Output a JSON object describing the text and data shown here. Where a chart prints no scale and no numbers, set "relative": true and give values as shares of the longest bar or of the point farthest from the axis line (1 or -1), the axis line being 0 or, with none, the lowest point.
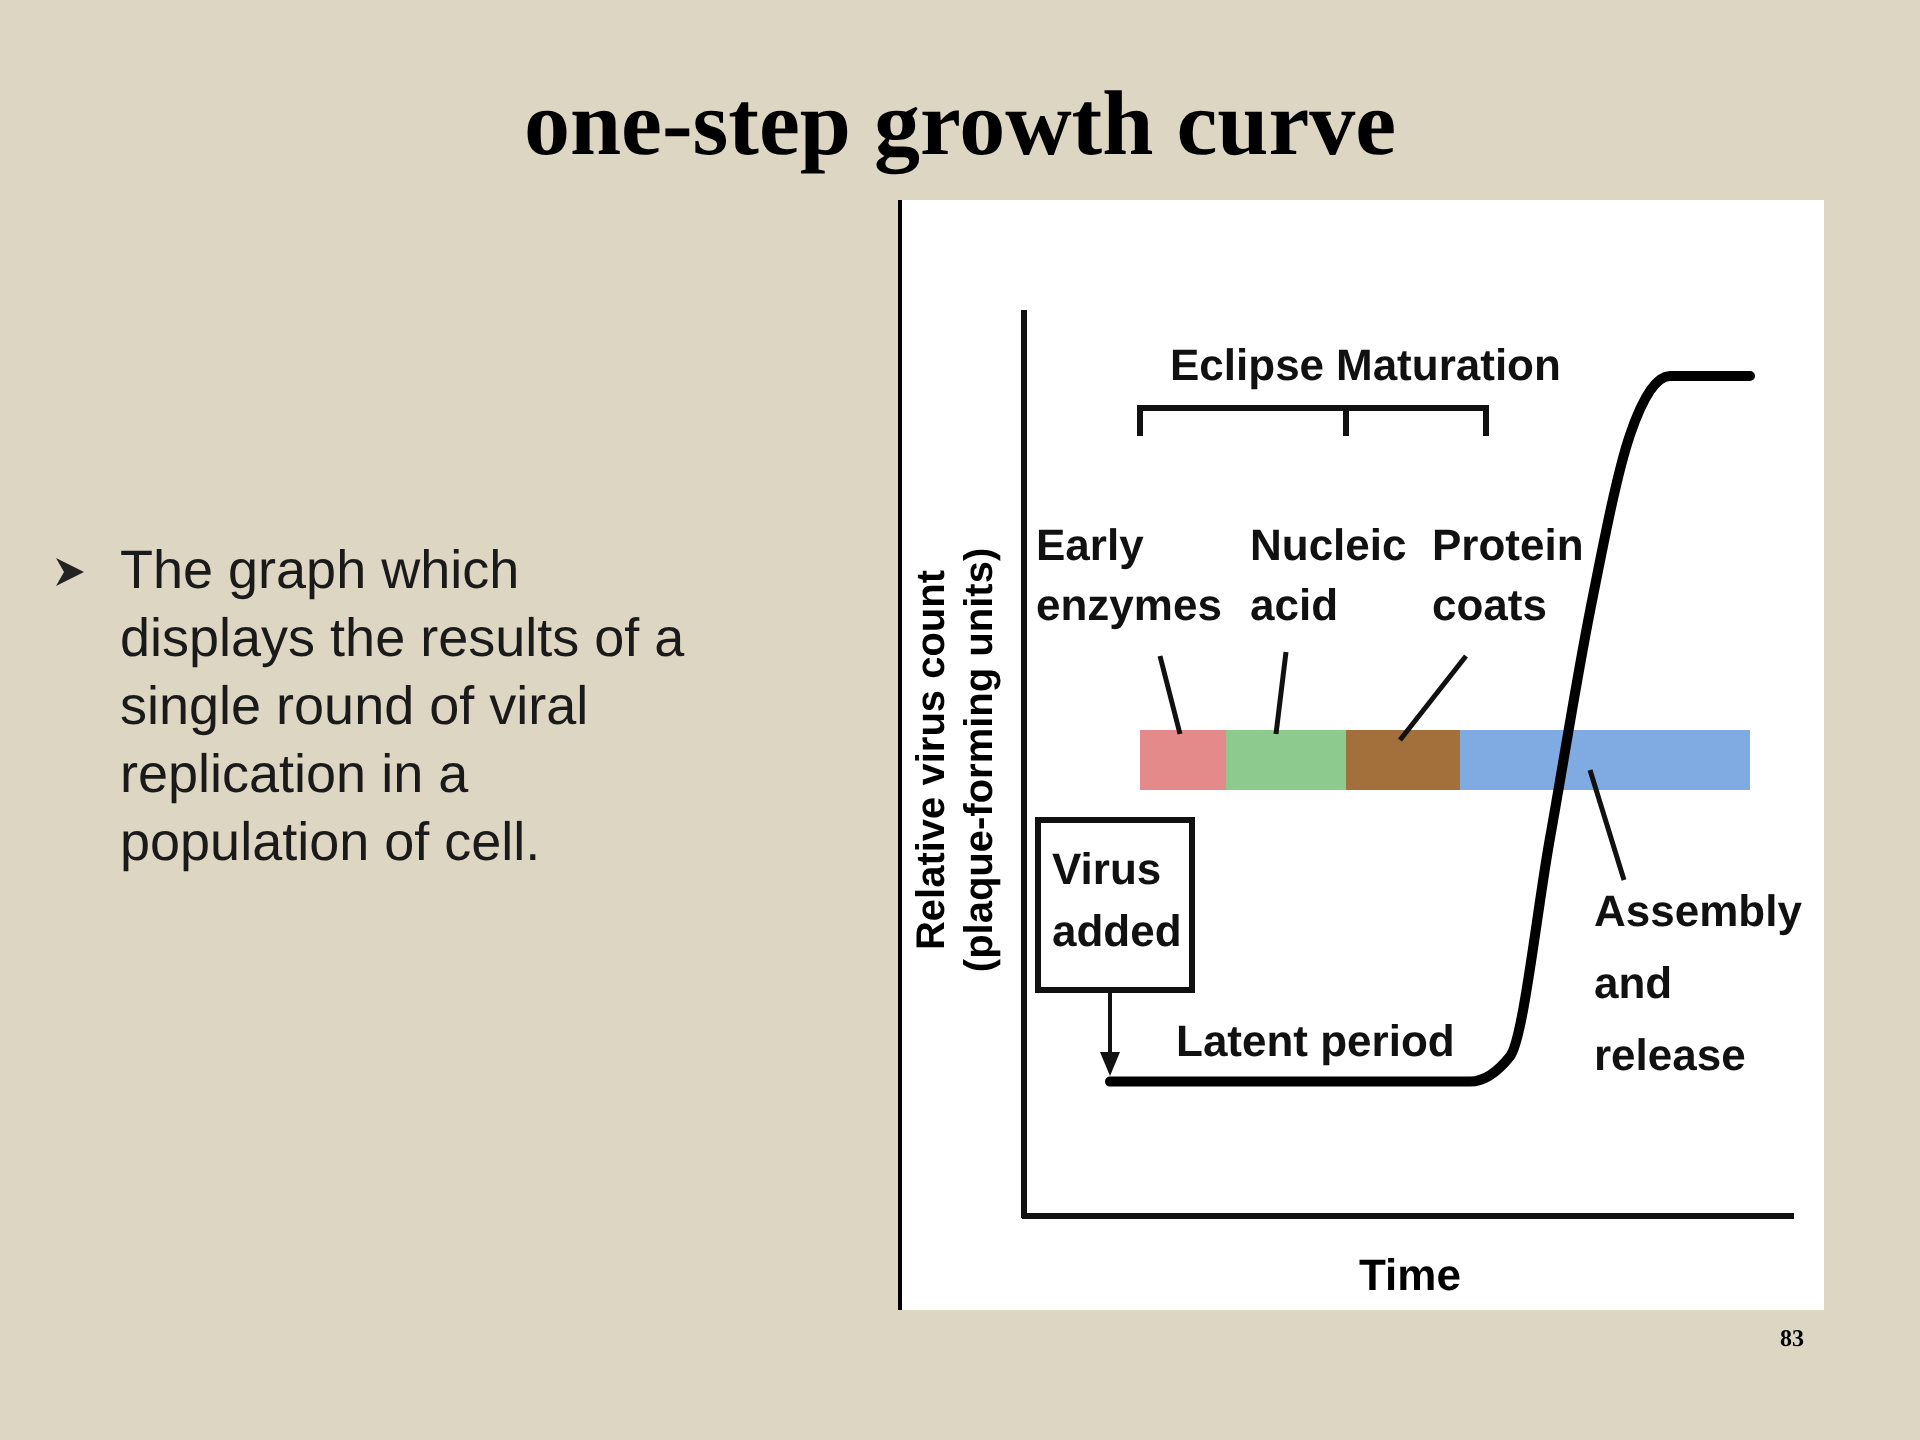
{
  "chart_data": {
    "type": "line",
    "title": "one-step growth curve",
    "xlabel": "Time",
    "ylabel": "Relative virus count\n(plaque-forming units)",
    "relative": true,
    "categories": [
      null,
      null,
      null,
      null,
      null,
      null,
      null,
      null,
      null,
      null,
      null,
      null,
      null,
      null,
      null,
      null,
      null
    ],
    "series": [
      {
        "color": "#000000",
        "values": [
          0.16,
          0.16,
          0.16,
          0.16,
          0.16,
          0.16,
          0.16,
          0.16,
          0.16,
          0.16,
          0.19,
          0.45,
          0.72,
          0.93,
          1,
          1,
          1
        ]
      }
    ],
    "annotations": [
      "The graph which\ndisplays the results of a\nsingle round of viral\nreplication in a\npopulation of cell.",
      "83",
      "Eclipse",
      "Maturation",
      "Early\nenzymes",
      "Nucleic\nacid",
      "Protein\ncoats",
      "Virus\nadded",
      "Latent period",
      "Assembly\nand\nrelease"
    ]
  }
}
